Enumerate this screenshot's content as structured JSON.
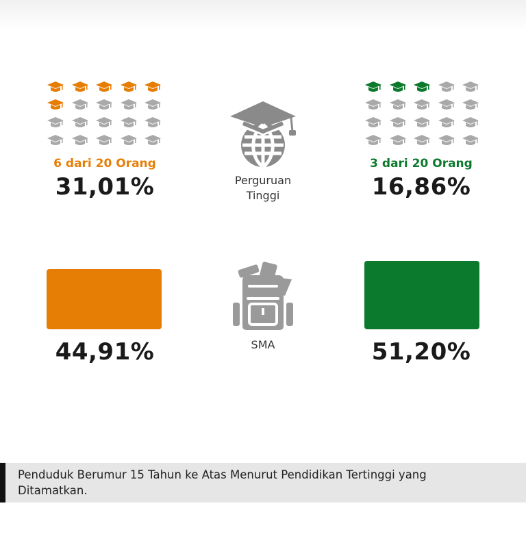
{
  "colors": {
    "orange": "#E67E06",
    "green": "#0B7A2C",
    "inactive": "#A9A9A9",
    "dark": "#1a1a1a"
  },
  "chart_data": [
    {
      "type": "pictogram",
      "icon": "graduation-cap-icon",
      "total": 20,
      "panels": [
        {
          "label": "6 dari 20 Orang",
          "filled": 6,
          "value_text": "31,01%",
          "value": 31.01,
          "color": "#E67E06"
        },
        {
          "label": "3 dari 20 Orang",
          "filled": 3,
          "value_text": "16,86%",
          "value": 16.86,
          "color": "#0B7A2C"
        }
      ],
      "category": "Perguruan Tinggi"
    },
    {
      "type": "bar",
      "category": "SMA",
      "bars": [
        {
          "value": 44.91,
          "value_text": "44,91%",
          "color": "#E67E06"
        },
        {
          "value": 51.2,
          "value_text": "51,20%",
          "color": "#0B7A2C"
        }
      ]
    }
  ],
  "labels": {
    "pt_line1": "Perguruan",
    "pt_line2": "Tinggi",
    "sma": "SMA"
  },
  "footer": {
    "caption": "Penduduk Berumur 15 Tahun ke Atas Menurut Pendidikan Tertinggi yang Ditamatkan."
  }
}
